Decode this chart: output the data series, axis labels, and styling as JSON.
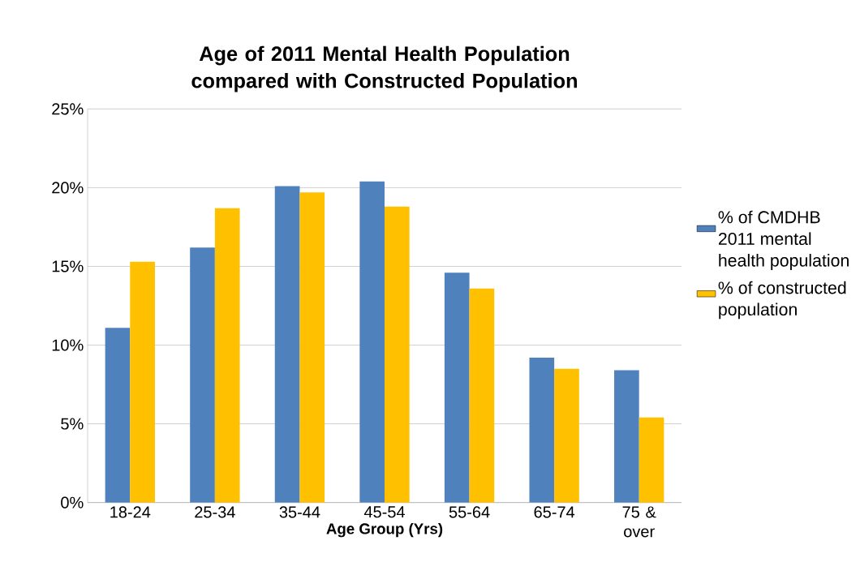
{
  "chart_data": {
    "type": "bar",
    "title": "Age of 2011 Mental Health Population compared with Constructed Population",
    "xlabel": "Age Group (Yrs)",
    "categories": [
      "18-24",
      "25-34",
      "35-44",
      "45-54",
      "55-64",
      "65-74",
      "75 & over"
    ],
    "series": [
      {
        "name": "% of CMDHB 2011 mental health population",
        "color": "#4f81bd",
        "values": [
          11.1,
          16.2,
          20.1,
          20.4,
          14.6,
          9.2,
          8.4
        ]
      },
      {
        "name": "% of constructed population",
        "color": "#ffc000",
        "values": [
          15.3,
          18.7,
          19.7,
          18.8,
          13.6,
          8.5,
          5.4
        ]
      }
    ],
    "ylim": [
      0,
      25
    ],
    "yticks": [
      {
        "value": 0,
        "label": "0%"
      },
      {
        "value": 5,
        "label": "5%"
      },
      {
        "value": 10,
        "label": "10%"
      },
      {
        "value": 15,
        "label": "15%"
      },
      {
        "value": 20,
        "label": "20%"
      },
      {
        "value": 25,
        "label": "25%"
      }
    ],
    "grid": "y",
    "legend": "right"
  }
}
